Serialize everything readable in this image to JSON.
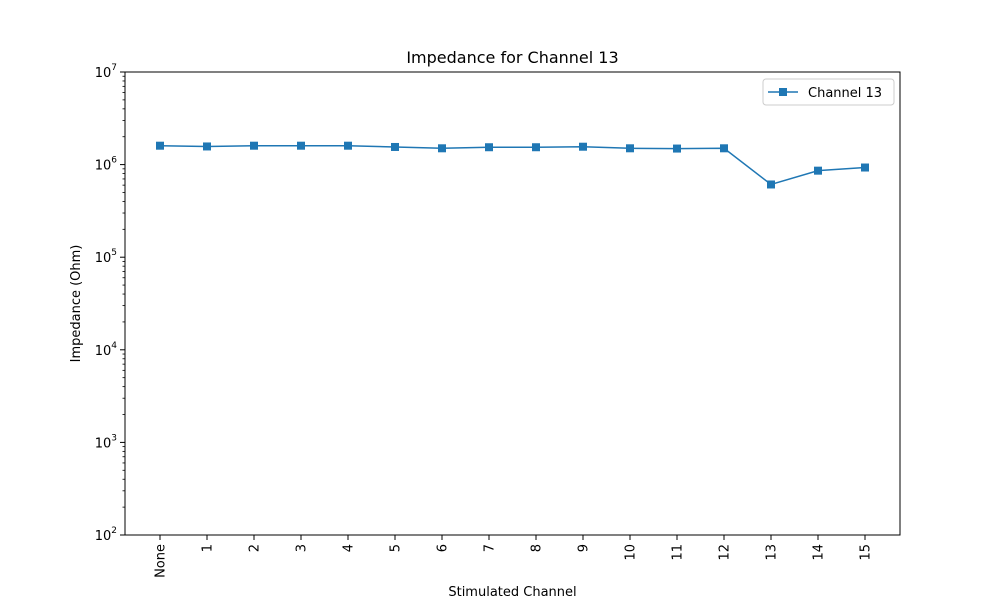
{
  "chart_data": {
    "type": "line",
    "title": "Impedance for Channel 13",
    "xlabel": "Stimulated Channel",
    "ylabel": "Impedance (Ohm)",
    "y_scale": "log",
    "ylim": [
      100,
      10000000
    ],
    "y_ticks": [
      {
        "value": 100,
        "base": "10",
        "exp": "2"
      },
      {
        "value": 1000,
        "base": "10",
        "exp": "3"
      },
      {
        "value": 10000,
        "base": "10",
        "exp": "4"
      },
      {
        "value": 100000,
        "base": "10",
        "exp": "5"
      },
      {
        "value": 1000000,
        "base": "10",
        "exp": "6"
      },
      {
        "value": 10000000,
        "base": "10",
        "exp": "7"
      }
    ],
    "categories": [
      "None",
      "1",
      "2",
      "3",
      "4",
      "5",
      "6",
      "7",
      "8",
      "9",
      "10",
      "11",
      "12",
      "13",
      "14",
      "15"
    ],
    "grid": false,
    "legend_position": "top-right",
    "series": [
      {
        "name": "Channel 13",
        "color": "#1f77b4",
        "marker": "square",
        "values": [
          1600000,
          1570000,
          1600000,
          1600000,
          1600000,
          1550000,
          1500000,
          1540000,
          1540000,
          1560000,
          1500000,
          1490000,
          1500000,
          610000,
          860000,
          930000
        ]
      }
    ]
  }
}
